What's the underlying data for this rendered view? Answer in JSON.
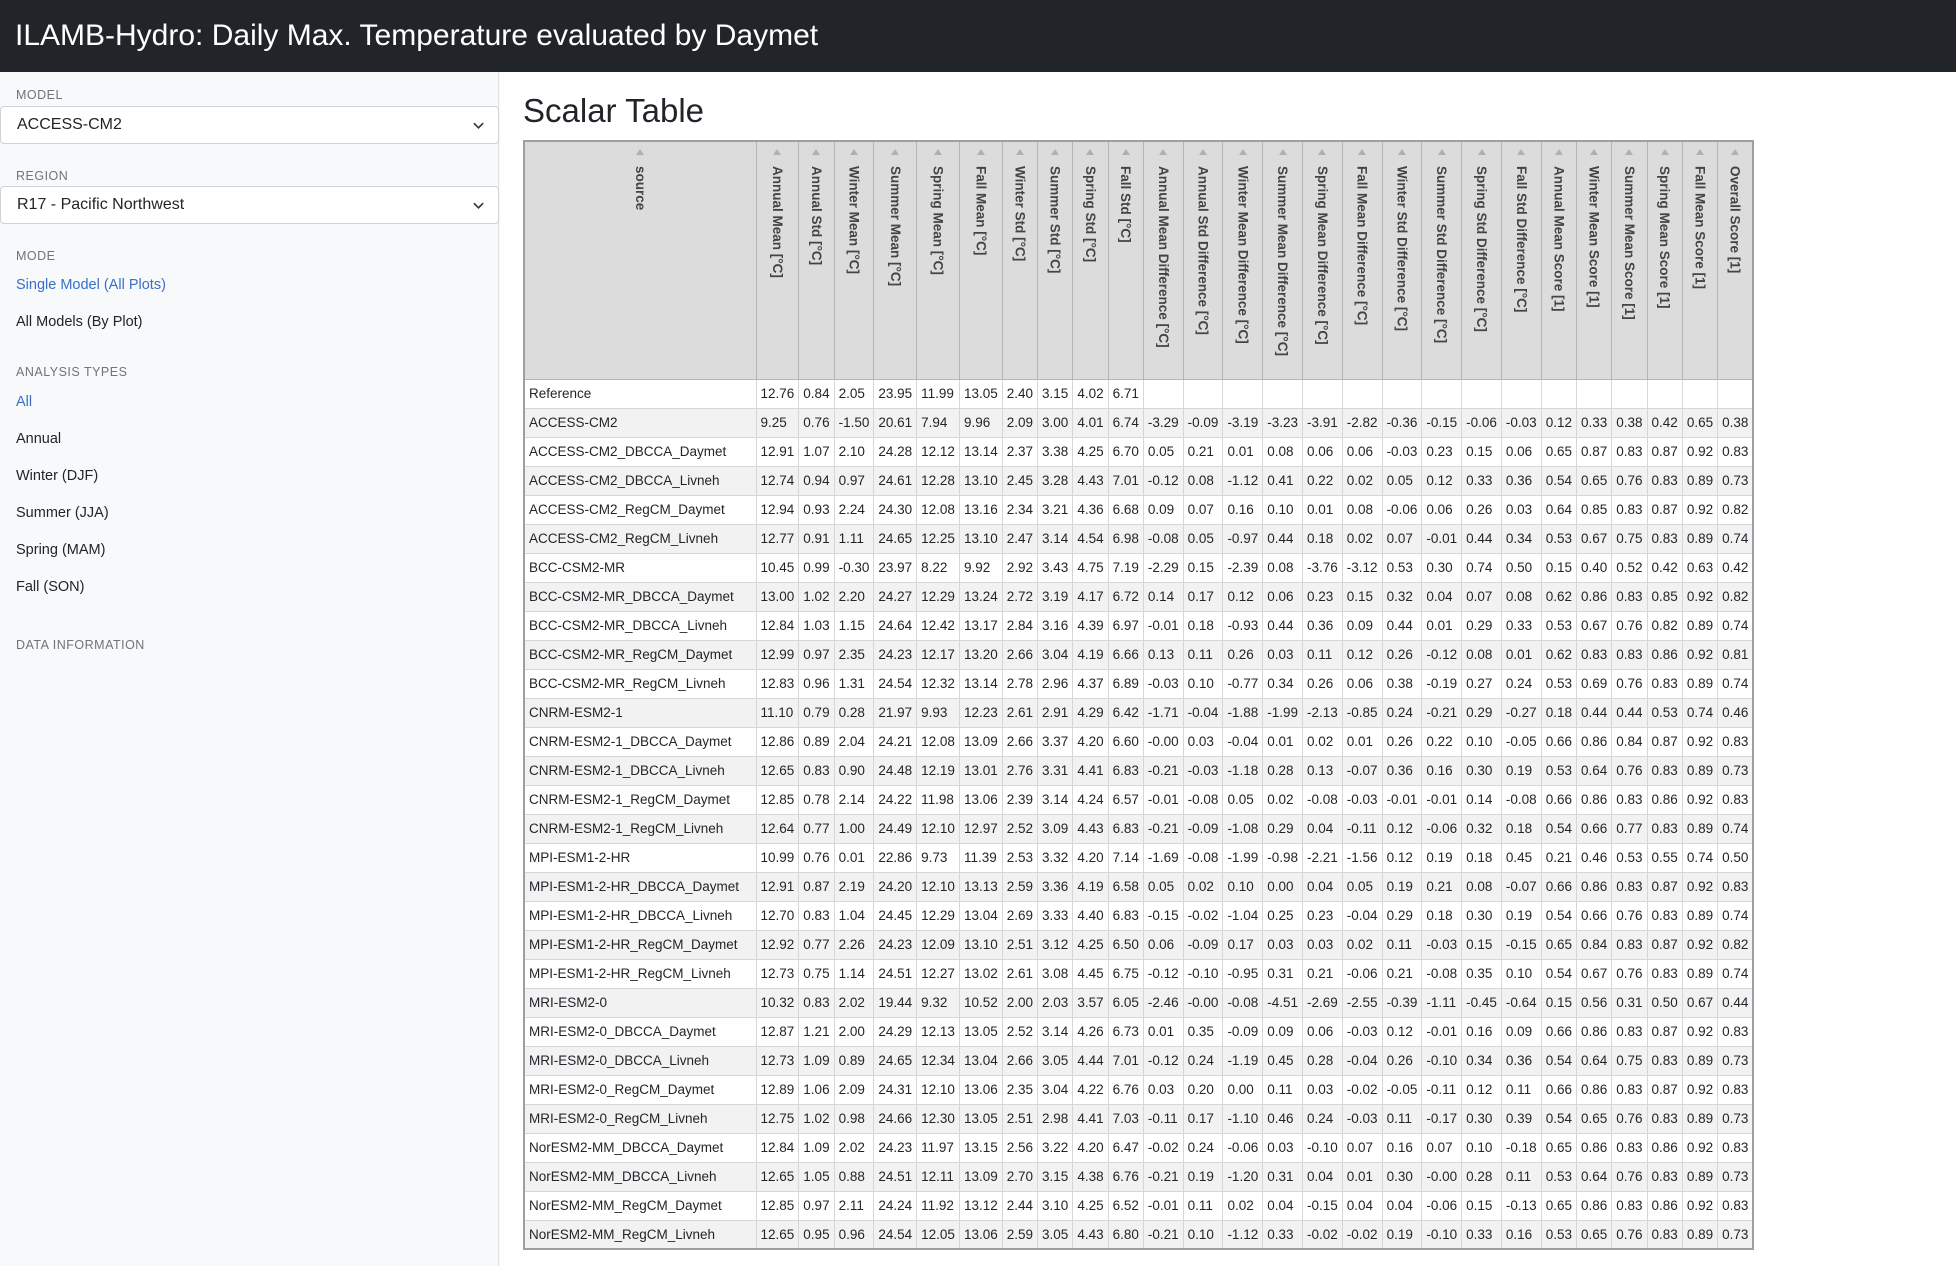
{
  "header": {
    "title": "ILAMB-Hydro: Daily Max. Temperature evaluated by Daymet"
  },
  "sidebar": {
    "model_label": "MODEL",
    "model_value": "ACCESS-CM2",
    "region_label": "REGION",
    "region_value": "R17 - Pacific Northwest",
    "mode_label": "MODE",
    "mode_items": [
      "Single Model (All Plots)",
      "All Models (By Plot)"
    ],
    "analysis_label": "ANALYSIS TYPES",
    "analysis_items": [
      "All",
      "Annual",
      "Winter (DJF)",
      "Summer (JJA)",
      "Spring (MAM)",
      "Fall (SON)"
    ],
    "data_info_label": "DATA INFORMATION",
    "accent_color": "#3a6fc7"
  },
  "main": {
    "title": "Scalar Table"
  },
  "table": {
    "columns": [
      "source",
      "Annual Mean [°C]",
      "Annual Std [°C]",
      "Winter Mean [°C]",
      "Summer Mean [°C]",
      "Spring Mean [°C]",
      "Fall Mean [°C]",
      "Winter Std [°C]",
      "Summer Std [°C]",
      "Spring Std [°C]",
      "Fall Std [°C]",
      "Annual Mean Difference [°C]",
      "Annual Std Difference [°C]",
      "Winter Mean Difference [°C]",
      "Summer Mean Difference [°C]",
      "Spring Mean Difference [°C]",
      "Fall Mean Difference [°C]",
      "Winter Std Difference [°C]",
      "Summer Std Difference [°C]",
      "Spring Std Difference [°C]",
      "Fall Std Difference [°C]",
      "Annual Mean Score [1]",
      "Winter Mean Score [1]",
      "Summer Mean Score [1]",
      "Spring Mean Score [1]",
      "Fall Mean Score [1]",
      "Overall Score [1]"
    ],
    "rows": [
      [
        "Reference",
        "12.76",
        "0.84",
        "2.05",
        "23.95",
        "11.99",
        "13.05",
        "2.40",
        "3.15",
        "4.02",
        "6.71",
        "",
        "",
        "",
        "",
        "",
        "",
        "",
        "",
        "",
        "",
        "",
        "",
        "",
        "",
        "",
        ""
      ],
      [
        "ACCESS-CM2",
        "9.25",
        "0.76",
        "-1.50",
        "20.61",
        "7.94",
        "9.96",
        "2.09",
        "3.00",
        "4.01",
        "6.74",
        "-3.29",
        "-0.09",
        "-3.19",
        "-3.23",
        "-3.91",
        "-2.82",
        "-0.36",
        "-0.15",
        "-0.06",
        "-0.03",
        "0.12",
        "0.33",
        "0.38",
        "0.42",
        "0.65",
        "0.38"
      ],
      [
        "ACCESS-CM2_DBCCA_Daymet",
        "12.91",
        "1.07",
        "2.10",
        "24.28",
        "12.12",
        "13.14",
        "2.37",
        "3.38",
        "4.25",
        "6.70",
        "0.05",
        "0.21",
        "0.01",
        "0.08",
        "0.06",
        "0.06",
        "-0.03",
        "0.23",
        "0.15",
        "0.06",
        "0.65",
        "0.87",
        "0.83",
        "0.87",
        "0.92",
        "0.83"
      ],
      [
        "ACCESS-CM2_DBCCA_Livneh",
        "12.74",
        "0.94",
        "0.97",
        "24.61",
        "12.28",
        "13.10",
        "2.45",
        "3.28",
        "4.43",
        "7.01",
        "-0.12",
        "0.08",
        "-1.12",
        "0.41",
        "0.22",
        "0.02",
        "0.05",
        "0.12",
        "0.33",
        "0.36",
        "0.54",
        "0.65",
        "0.76",
        "0.83",
        "0.89",
        "0.73"
      ],
      [
        "ACCESS-CM2_RegCM_Daymet",
        "12.94",
        "0.93",
        "2.24",
        "24.30",
        "12.08",
        "13.16",
        "2.34",
        "3.21",
        "4.36",
        "6.68",
        "0.09",
        "0.07",
        "0.16",
        "0.10",
        "0.01",
        "0.08",
        "-0.06",
        "0.06",
        "0.26",
        "0.03",
        "0.64",
        "0.85",
        "0.83",
        "0.87",
        "0.92",
        "0.82"
      ],
      [
        "ACCESS-CM2_RegCM_Livneh",
        "12.77",
        "0.91",
        "1.11",
        "24.65",
        "12.25",
        "13.10",
        "2.47",
        "3.14",
        "4.54",
        "6.98",
        "-0.08",
        "0.05",
        "-0.97",
        "0.44",
        "0.18",
        "0.02",
        "0.07",
        "-0.01",
        "0.44",
        "0.34",
        "0.53",
        "0.67",
        "0.75",
        "0.83",
        "0.89",
        "0.74"
      ],
      [
        "BCC-CSM2-MR",
        "10.45",
        "0.99",
        "-0.30",
        "23.97",
        "8.22",
        "9.92",
        "2.92",
        "3.43",
        "4.75",
        "7.19",
        "-2.29",
        "0.15",
        "-2.39",
        "0.08",
        "-3.76",
        "-3.12",
        "0.53",
        "0.30",
        "0.74",
        "0.50",
        "0.15",
        "0.40",
        "0.52",
        "0.42",
        "0.63",
        "0.42"
      ],
      [
        "BCC-CSM2-MR_DBCCA_Daymet",
        "13.00",
        "1.02",
        "2.20",
        "24.27",
        "12.29",
        "13.24",
        "2.72",
        "3.19",
        "4.17",
        "6.72",
        "0.14",
        "0.17",
        "0.12",
        "0.06",
        "0.23",
        "0.15",
        "0.32",
        "0.04",
        "0.07",
        "0.08",
        "0.62",
        "0.86",
        "0.83",
        "0.85",
        "0.92",
        "0.82"
      ],
      [
        "BCC-CSM2-MR_DBCCA_Livneh",
        "12.84",
        "1.03",
        "1.15",
        "24.64",
        "12.42",
        "13.17",
        "2.84",
        "3.16",
        "4.39",
        "6.97",
        "-0.01",
        "0.18",
        "-0.93",
        "0.44",
        "0.36",
        "0.09",
        "0.44",
        "0.01",
        "0.29",
        "0.33",
        "0.53",
        "0.67",
        "0.76",
        "0.82",
        "0.89",
        "0.74"
      ],
      [
        "BCC-CSM2-MR_RegCM_Daymet",
        "12.99",
        "0.97",
        "2.35",
        "24.23",
        "12.17",
        "13.20",
        "2.66",
        "3.04",
        "4.19",
        "6.66",
        "0.13",
        "0.11",
        "0.26",
        "0.03",
        "0.11",
        "0.12",
        "0.26",
        "-0.12",
        "0.08",
        "0.01",
        "0.62",
        "0.83",
        "0.83",
        "0.86",
        "0.92",
        "0.81"
      ],
      [
        "BCC-CSM2-MR_RegCM_Livneh",
        "12.83",
        "0.96",
        "1.31",
        "24.54",
        "12.32",
        "13.14",
        "2.78",
        "2.96",
        "4.37",
        "6.89",
        "-0.03",
        "0.10",
        "-0.77",
        "0.34",
        "0.26",
        "0.06",
        "0.38",
        "-0.19",
        "0.27",
        "0.24",
        "0.53",
        "0.69",
        "0.76",
        "0.83",
        "0.89",
        "0.74"
      ],
      [
        "CNRM-ESM2-1",
        "11.10",
        "0.79",
        "0.28",
        "21.97",
        "9.93",
        "12.23",
        "2.61",
        "2.91",
        "4.29",
        "6.42",
        "-1.71",
        "-0.04",
        "-1.88",
        "-1.99",
        "-2.13",
        "-0.85",
        "0.24",
        "-0.21",
        "0.29",
        "-0.27",
        "0.18",
        "0.44",
        "0.44",
        "0.53",
        "0.74",
        "0.46"
      ],
      [
        "CNRM-ESM2-1_DBCCA_Daymet",
        "12.86",
        "0.89",
        "2.04",
        "24.21",
        "12.08",
        "13.09",
        "2.66",
        "3.37",
        "4.20",
        "6.60",
        "-0.00",
        "0.03",
        "-0.04",
        "0.01",
        "0.02",
        "0.01",
        "0.26",
        "0.22",
        "0.10",
        "-0.05",
        "0.66",
        "0.86",
        "0.84",
        "0.87",
        "0.92",
        "0.83"
      ],
      [
        "CNRM-ESM2-1_DBCCA_Livneh",
        "12.65",
        "0.83",
        "0.90",
        "24.48",
        "12.19",
        "13.01",
        "2.76",
        "3.31",
        "4.41",
        "6.83",
        "-0.21",
        "-0.03",
        "-1.18",
        "0.28",
        "0.13",
        "-0.07",
        "0.36",
        "0.16",
        "0.30",
        "0.19",
        "0.53",
        "0.64",
        "0.76",
        "0.83",
        "0.89",
        "0.73"
      ],
      [
        "CNRM-ESM2-1_RegCM_Daymet",
        "12.85",
        "0.78",
        "2.14",
        "24.22",
        "11.98",
        "13.06",
        "2.39",
        "3.14",
        "4.24",
        "6.57",
        "-0.01",
        "-0.08",
        "0.05",
        "0.02",
        "-0.08",
        "-0.03",
        "-0.01",
        "-0.01",
        "0.14",
        "-0.08",
        "0.66",
        "0.86",
        "0.83",
        "0.86",
        "0.92",
        "0.83"
      ],
      [
        "CNRM-ESM2-1_RegCM_Livneh",
        "12.64",
        "0.77",
        "1.00",
        "24.49",
        "12.10",
        "12.97",
        "2.52",
        "3.09",
        "4.43",
        "6.83",
        "-0.21",
        "-0.09",
        "-1.08",
        "0.29",
        "0.04",
        "-0.11",
        "0.12",
        "-0.06",
        "0.32",
        "0.18",
        "0.54",
        "0.66",
        "0.77",
        "0.83",
        "0.89",
        "0.74"
      ],
      [
        "MPI-ESM1-2-HR",
        "10.99",
        "0.76",
        "0.01",
        "22.86",
        "9.73",
        "11.39",
        "2.53",
        "3.32",
        "4.20",
        "7.14",
        "-1.69",
        "-0.08",
        "-1.99",
        "-0.98",
        "-2.21",
        "-1.56",
        "0.12",
        "0.19",
        "0.18",
        "0.45",
        "0.21",
        "0.46",
        "0.53",
        "0.55",
        "0.74",
        "0.50"
      ],
      [
        "MPI-ESM1-2-HR_DBCCA_Daymet",
        "12.91",
        "0.87",
        "2.19",
        "24.20",
        "12.10",
        "13.13",
        "2.59",
        "3.36",
        "4.19",
        "6.58",
        "0.05",
        "0.02",
        "0.10",
        "0.00",
        "0.04",
        "0.05",
        "0.19",
        "0.21",
        "0.08",
        "-0.07",
        "0.66",
        "0.86",
        "0.83",
        "0.87",
        "0.92",
        "0.83"
      ],
      [
        "MPI-ESM1-2-HR_DBCCA_Livneh",
        "12.70",
        "0.83",
        "1.04",
        "24.45",
        "12.29",
        "13.04",
        "2.69",
        "3.33",
        "4.40",
        "6.83",
        "-0.15",
        "-0.02",
        "-1.04",
        "0.25",
        "0.23",
        "-0.04",
        "0.29",
        "0.18",
        "0.30",
        "0.19",
        "0.54",
        "0.66",
        "0.76",
        "0.83",
        "0.89",
        "0.74"
      ],
      [
        "MPI-ESM1-2-HR_RegCM_Daymet",
        "12.92",
        "0.77",
        "2.26",
        "24.23",
        "12.09",
        "13.10",
        "2.51",
        "3.12",
        "4.25",
        "6.50",
        "0.06",
        "-0.09",
        "0.17",
        "0.03",
        "0.03",
        "0.02",
        "0.11",
        "-0.03",
        "0.15",
        "-0.15",
        "0.65",
        "0.84",
        "0.83",
        "0.87",
        "0.92",
        "0.82"
      ],
      [
        "MPI-ESM1-2-HR_RegCM_Livneh",
        "12.73",
        "0.75",
        "1.14",
        "24.51",
        "12.27",
        "13.02",
        "2.61",
        "3.08",
        "4.45",
        "6.75",
        "-0.12",
        "-0.10",
        "-0.95",
        "0.31",
        "0.21",
        "-0.06",
        "0.21",
        "-0.08",
        "0.35",
        "0.10",
        "0.54",
        "0.67",
        "0.76",
        "0.83",
        "0.89",
        "0.74"
      ],
      [
        "MRI-ESM2-0",
        "10.32",
        "0.83",
        "2.02",
        "19.44",
        "9.32",
        "10.52",
        "2.00",
        "2.03",
        "3.57",
        "6.05",
        "-2.46",
        "-0.00",
        "-0.08",
        "-4.51",
        "-2.69",
        "-2.55",
        "-0.39",
        "-1.11",
        "-0.45",
        "-0.64",
        "0.15",
        "0.56",
        "0.31",
        "0.50",
        "0.67",
        "0.44"
      ],
      [
        "MRI-ESM2-0_DBCCA_Daymet",
        "12.87",
        "1.21",
        "2.00",
        "24.29",
        "12.13",
        "13.05",
        "2.52",
        "3.14",
        "4.26",
        "6.73",
        "0.01",
        "0.35",
        "-0.09",
        "0.09",
        "0.06",
        "-0.03",
        "0.12",
        "-0.01",
        "0.16",
        "0.09",
        "0.66",
        "0.86",
        "0.83",
        "0.87",
        "0.92",
        "0.83"
      ],
      [
        "MRI-ESM2-0_DBCCA_Livneh",
        "12.73",
        "1.09",
        "0.89",
        "24.65",
        "12.34",
        "13.04",
        "2.66",
        "3.05",
        "4.44",
        "7.01",
        "-0.12",
        "0.24",
        "-1.19",
        "0.45",
        "0.28",
        "-0.04",
        "0.26",
        "-0.10",
        "0.34",
        "0.36",
        "0.54",
        "0.64",
        "0.75",
        "0.83",
        "0.89",
        "0.73"
      ],
      [
        "MRI-ESM2-0_RegCM_Daymet",
        "12.89",
        "1.06",
        "2.09",
        "24.31",
        "12.10",
        "13.06",
        "2.35",
        "3.04",
        "4.22",
        "6.76",
        "0.03",
        "0.20",
        "0.00",
        "0.11",
        "0.03",
        "-0.02",
        "-0.05",
        "-0.11",
        "0.12",
        "0.11",
        "0.66",
        "0.86",
        "0.83",
        "0.87",
        "0.92",
        "0.83"
      ],
      [
        "MRI-ESM2-0_RegCM_Livneh",
        "12.75",
        "1.02",
        "0.98",
        "24.66",
        "12.30",
        "13.05",
        "2.51",
        "2.98",
        "4.41",
        "7.03",
        "-0.11",
        "0.17",
        "-1.10",
        "0.46",
        "0.24",
        "-0.03",
        "0.11",
        "-0.17",
        "0.30",
        "0.39",
        "0.54",
        "0.65",
        "0.76",
        "0.83",
        "0.89",
        "0.73"
      ],
      [
        "NorESM2-MM_DBCCA_Daymet",
        "12.84",
        "1.09",
        "2.02",
        "24.23",
        "11.97",
        "13.15",
        "2.56",
        "3.22",
        "4.20",
        "6.47",
        "-0.02",
        "0.24",
        "-0.06",
        "0.03",
        "-0.10",
        "0.07",
        "0.16",
        "0.07",
        "0.10",
        "-0.18",
        "0.65",
        "0.86",
        "0.83",
        "0.86",
        "0.92",
        "0.83"
      ],
      [
        "NorESM2-MM_DBCCA_Livneh",
        "12.65",
        "1.05",
        "0.88",
        "24.51",
        "12.11",
        "13.09",
        "2.70",
        "3.15",
        "4.38",
        "6.76",
        "-0.21",
        "0.19",
        "-1.20",
        "0.31",
        "0.04",
        "0.01",
        "0.30",
        "-0.00",
        "0.28",
        "0.11",
        "0.53",
        "0.64",
        "0.76",
        "0.83",
        "0.89",
        "0.73"
      ],
      [
        "NorESM2-MM_RegCM_Daymet",
        "12.85",
        "0.97",
        "2.11",
        "24.24",
        "11.92",
        "13.12",
        "2.44",
        "3.10",
        "4.25",
        "6.52",
        "-0.01",
        "0.11",
        "0.02",
        "0.04",
        "-0.15",
        "0.04",
        "0.04",
        "-0.06",
        "0.15",
        "-0.13",
        "0.65",
        "0.86",
        "0.83",
        "0.86",
        "0.92",
        "0.83"
      ],
      [
        "NorESM2-MM_RegCM_Livneh",
        "12.65",
        "0.95",
        "0.96",
        "24.54",
        "12.05",
        "13.06",
        "2.59",
        "3.05",
        "4.43",
        "6.80",
        "-0.21",
        "0.10",
        "-1.12",
        "0.33",
        "-0.02",
        "-0.02",
        "0.19",
        "-0.10",
        "0.33",
        "0.16",
        "0.53",
        "0.65",
        "0.76",
        "0.83",
        "0.89",
        "0.73"
      ]
    ]
  }
}
